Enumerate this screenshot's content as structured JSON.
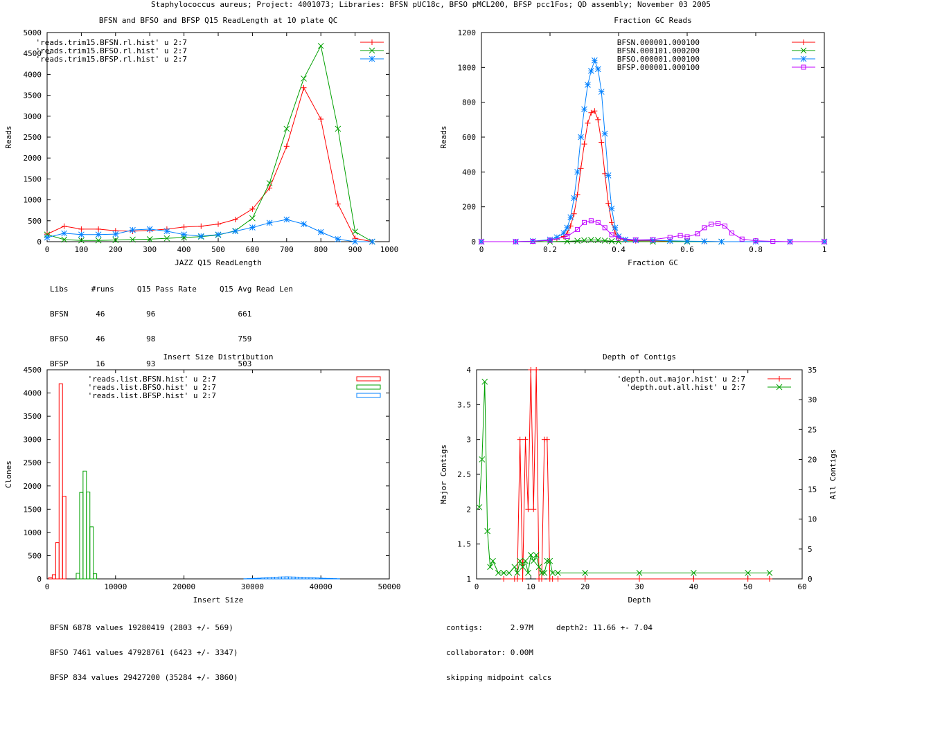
{
  "page_title": "Staphylococcus aureus; Project: 4001073; Libraries: BFSN pUC18c, BFSO pMCL200, BFSP pcc1Fos; QD assembly; November 03 2005",
  "chart_data": [
    {
      "id": "readlength",
      "type": "line",
      "title": "BFSN and BFSO and BFSP Q15 ReadLength at 10 plate QC",
      "xlabel": "JAZZ Q15 ReadLength",
      "ylabel": "Reads",
      "xlim": [
        0,
        1000
      ],
      "ylim": [
        0,
        5000
      ],
      "xticks": [
        0,
        100,
        200,
        300,
        400,
        500,
        600,
        700,
        800,
        900,
        1000
      ],
      "yticks": [
        0,
        500,
        1000,
        1500,
        2000,
        2500,
        3000,
        3500,
        4000,
        4500,
        5000
      ],
      "series": [
        {
          "name": "'reads.trim15.BFSN.rl.hist' u 2:7",
          "color": "#ff0000",
          "marker": "plus",
          "x": [
            0,
            50,
            100,
            150,
            200,
            250,
            300,
            350,
            400,
            450,
            500,
            550,
            600,
            650,
            700,
            750,
            800,
            850,
            900,
            950
          ],
          "y": [
            180,
            370,
            300,
            300,
            260,
            250,
            270,
            300,
            350,
            370,
            420,
            530,
            780,
            1280,
            2280,
            3680,
            2930,
            900,
            80,
            0
          ]
        },
        {
          "name": "'reads.trim15.BFSO.rl.hist' u 2:7",
          "color": "#00a000",
          "marker": "x",
          "x": [
            0,
            50,
            100,
            150,
            200,
            250,
            300,
            350,
            400,
            450,
            500,
            550,
            600,
            650,
            700,
            750,
            800,
            850,
            900,
            950
          ],
          "y": [
            170,
            50,
            30,
            30,
            40,
            50,
            60,
            80,
            100,
            120,
            160,
            260,
            560,
            1400,
            2700,
            3900,
            4680,
            2700,
            240,
            0
          ]
        },
        {
          "name": "'reads.trim15.BFSP.rl.hist' u 2:7",
          "color": "#0080ff",
          "marker": "star",
          "x": [
            0,
            50,
            100,
            150,
            200,
            250,
            300,
            350,
            400,
            450,
            500,
            550,
            600,
            650,
            700,
            750,
            800,
            850,
            900,
            950
          ],
          "y": [
            100,
            200,
            170,
            170,
            180,
            280,
            300,
            250,
            170,
            130,
            170,
            250,
            340,
            450,
            530,
            420,
            230,
            60,
            0,
            0
          ]
        }
      ]
    },
    {
      "id": "gc",
      "type": "line",
      "title": "Fraction GC Reads",
      "xlabel": "Fraction GC",
      "ylabel": "Reads",
      "xlim": [
        0,
        1
      ],
      "ylim": [
        0,
        1200
      ],
      "xticks": [
        "0",
        "0.2",
        "0.4",
        "0.6",
        "0.8",
        "1"
      ],
      "yticks": [
        0,
        200,
        400,
        600,
        800,
        1000,
        1200
      ],
      "series": [
        {
          "name": "BFSN.000001.000100",
          "color": "#ff0000",
          "marker": "plus",
          "x": [
            0,
            0.1,
            0.15,
            0.2,
            0.22,
            0.24,
            0.25,
            0.26,
            0.27,
            0.28,
            0.29,
            0.3,
            0.31,
            0.32,
            0.33,
            0.34,
            0.35,
            0.36,
            0.37,
            0.38,
            0.39,
            0.4,
            0.42,
            0.45,
            0.5,
            0.55,
            0.6,
            0.65,
            0.7,
            0.8,
            0.9,
            1.0
          ],
          "y": [
            0,
            0,
            2,
            8,
            15,
            30,
            50,
            90,
            160,
            270,
            420,
            560,
            680,
            740,
            750,
            700,
            570,
            390,
            220,
            110,
            50,
            20,
            8,
            5,
            5,
            3,
            2,
            1,
            0,
            0,
            0,
            0
          ]
        },
        {
          "name": "BFSN.000101.000200",
          "color": "#00a000",
          "marker": "x",
          "x": [
            0,
            0.2,
            0.25,
            0.28,
            0.3,
            0.32,
            0.34,
            0.36,
            0.38,
            0.4,
            0.5,
            0.6,
            0.7,
            1.0
          ],
          "y": [
            0,
            0,
            2,
            5,
            8,
            10,
            9,
            6,
            3,
            1,
            0,
            0,
            0,
            0
          ]
        },
        {
          "name": "BFSO.000001.000100",
          "color": "#0080ff",
          "marker": "star",
          "x": [
            0,
            0.1,
            0.15,
            0.2,
            0.22,
            0.24,
            0.25,
            0.26,
            0.27,
            0.28,
            0.29,
            0.3,
            0.31,
            0.32,
            0.33,
            0.34,
            0.35,
            0.36,
            0.37,
            0.38,
            0.39,
            0.4,
            0.42,
            0.45,
            0.5,
            0.55,
            0.6,
            0.65,
            0.7,
            0.8,
            0.9,
            1.0
          ],
          "y": [
            0,
            0,
            3,
            12,
            25,
            50,
            80,
            140,
            250,
            400,
            600,
            760,
            900,
            980,
            1040,
            990,
            860,
            620,
            380,
            190,
            80,
            30,
            12,
            8,
            8,
            5,
            3,
            2,
            0,
            0,
            0,
            0
          ]
        },
        {
          "name": "BFSP.000001.000100",
          "color": "#c000ff",
          "marker": "box",
          "x": [
            0,
            0.1,
            0.15,
            0.2,
            0.25,
            0.28,
            0.3,
            0.32,
            0.34,
            0.36,
            0.38,
            0.4,
            0.45,
            0.5,
            0.55,
            0.58,
            0.6,
            0.63,
            0.65,
            0.67,
            0.69,
            0.71,
            0.73,
            0.76,
            0.8,
            0.85,
            0.9,
            1.0
          ],
          "y": [
            0,
            0,
            2,
            8,
            30,
            70,
            110,
            120,
            110,
            80,
            40,
            20,
            10,
            12,
            25,
            35,
            28,
            45,
            80,
            100,
            105,
            90,
            50,
            15,
            5,
            2,
            0,
            0
          ]
        }
      ]
    },
    {
      "id": "insert",
      "type": "histogram",
      "title": "Insert Size Distribution",
      "xlabel": "Insert Size",
      "ylabel": "Clones",
      "xlim": [
        0,
        50000
      ],
      "ylim": [
        0,
        4500
      ],
      "xticks": [
        0,
        10000,
        20000,
        30000,
        40000,
        50000
      ],
      "yticks": [
        0,
        500,
        1000,
        1500,
        2000,
        2500,
        3000,
        3500,
        4000,
        4500
      ],
      "series": [
        {
          "name": "'reads.list.BFSN.hist' u 2:7",
          "color": "#ff0000",
          "bin": 500,
          "x": [
            500,
            1000,
            1500,
            2000,
            2500,
            3000
          ],
          "y": [
            30,
            90,
            780,
            4200,
            1780,
            0
          ]
        },
        {
          "name": "'reads.list.BFSO.hist' u 2:7",
          "color": "#00a000",
          "bin": 500,
          "x": [
            4500,
            5000,
            5500,
            6000,
            6500,
            7000,
            7500
          ],
          "y": [
            120,
            1860,
            2320,
            1870,
            1120,
            110,
            0
          ]
        },
        {
          "name": "'reads.list.BFSP.hist' u 2:7",
          "color": "#0080ff",
          "bin": 500,
          "x": [
            29000,
            29500,
            30000,
            30500,
            31000,
            31500,
            32000,
            32500,
            33000,
            33500,
            34000,
            34500,
            35000,
            35500,
            36000,
            36500,
            37000,
            37500,
            38000,
            38500,
            39000,
            39500,
            40000,
            40500,
            41000,
            41500,
            42000,
            42500
          ],
          "y": [
            3,
            6,
            8,
            12,
            15,
            20,
            24,
            28,
            32,
            36,
            40,
            42,
            44,
            42,
            40,
            38,
            36,
            32,
            28,
            26,
            24,
            20,
            16,
            12,
            10,
            8,
            6,
            3
          ]
        }
      ]
    },
    {
      "id": "depth",
      "type": "line",
      "title": "Depth of Contigs",
      "xlabel": "Depth",
      "ylabel": "Major Contigs",
      "y2label": "All Contigs",
      "xlim": [
        0,
        60
      ],
      "ylim": [
        1,
        4
      ],
      "y2lim": [
        0,
        35
      ],
      "xticks": [
        0,
        10,
        20,
        30,
        40,
        50,
        60
      ],
      "yticks": [
        "1",
        "1.5",
        "2",
        "2.5",
        "3",
        "3.5",
        "4"
      ],
      "y2ticks": [
        0,
        5,
        10,
        15,
        20,
        25,
        30,
        35
      ],
      "series": [
        {
          "name": "'depth.out.major.hist' u 2:7",
          "color": "#ff0000",
          "marker": "plus",
          "axis": "y",
          "x": [
            5,
            7,
            7.5,
            8,
            8.5,
            9,
            9.5,
            10,
            10.5,
            11,
            11.5,
            12,
            12.5,
            13,
            13.5,
            14,
            15,
            20,
            30,
            40,
            50,
            54
          ],
          "y": [
            1,
            1,
            1,
            3,
            1,
            3,
            2,
            4,
            2,
            4,
            1,
            1,
            3,
            3,
            1,
            1,
            1,
            1,
            1,
            1,
            1,
            1
          ]
        },
        {
          "name": "'depth.out.all.hist' u 2:7",
          "color": "#00a000",
          "marker": "x",
          "axis": "y2",
          "x": [
            0.5,
            1,
            1.5,
            2,
            2.5,
            3,
            4,
            5,
            6,
            7,
            7.5,
            8,
            8.5,
            9,
            9.5,
            10,
            10.5,
            11,
            11.5,
            12,
            12.5,
            13,
            13.5,
            14,
            15,
            20,
            30,
            40,
            50,
            54
          ],
          "y": [
            12,
            20,
            33,
            8,
            2,
            3,
            1,
            1,
            1,
            2,
            1,
            3,
            2,
            3,
            1,
            4,
            3,
            4,
            2,
            1,
            1,
            3,
            3,
            1,
            1,
            1,
            1,
            1,
            1,
            1
          ]
        }
      ]
    }
  ],
  "stats": {
    "readlength": [
      "Libs     #runs     Q15 Pass Rate     Q15 Avg Read Len",
      "BFSN      46         96                  661",
      "BFSO      46         98                  759",
      "BFSP      16         93                  503"
    ],
    "insert": [
      "BFSN 6878 values 19280419 (2803 +/- 569)",
      "BFSO 7461 values 47928761 (6423 +/- 3347)",
      "BFSP 834 values 29427200 (35284 +/- 3860)"
    ],
    "depth": [
      "contigs:      2.97M     depth2: 11.66 +- 7.04",
      "collaborator: 0.00M",
      "skipping midpoint calcs"
    ]
  }
}
